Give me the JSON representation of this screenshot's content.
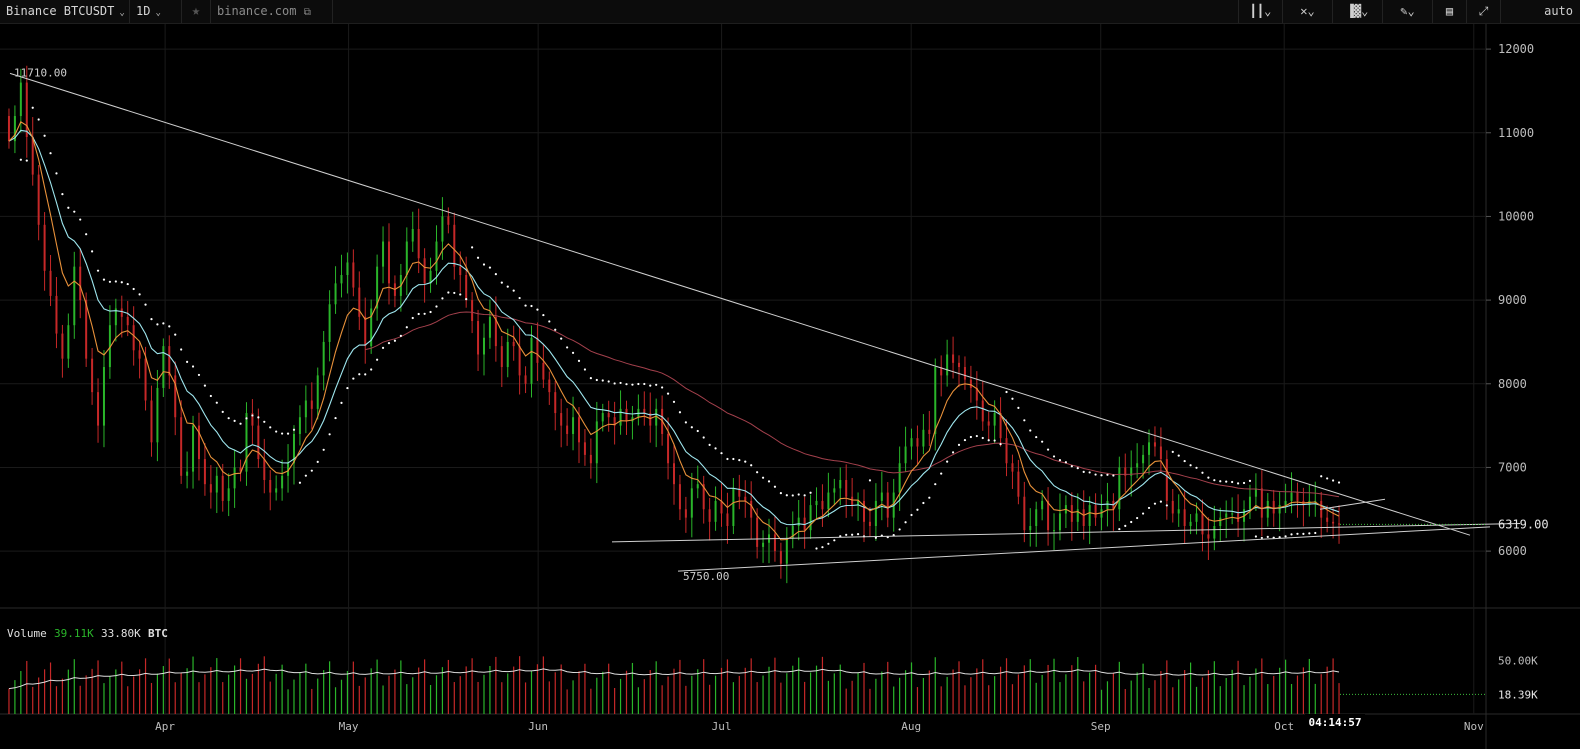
{
  "toolbar": {
    "symbol": "Binance BTCUSDT",
    "interval": "1D",
    "star_icon": "star-icon",
    "source": "binance.com",
    "right_icons": [
      "bars-style-icon",
      "cross-icon",
      "chart-type-icon",
      "pencil-icon",
      "indicator-icon",
      "fullscreen-icon"
    ],
    "scale": "auto"
  },
  "colors": {
    "background": "#000000",
    "grid": "#1a1a1a",
    "candle_up": "#2ab52a",
    "candle_down": "#c62828",
    "ema_orange": "#e8913a",
    "ema_cyan": "#9ee6ee",
    "ma_long": "#a3404c",
    "trendline": "#d0d0d0",
    "parabolic_sar": "#ffffff",
    "volume_line": "#e0e0e0"
  },
  "annotations": {
    "high_label": "11710.00",
    "low_label": "5750.00"
  },
  "chart_data": {
    "type": "candlestick",
    "x_labels": [
      "Apr",
      "May",
      "Jun",
      "Jul",
      "Aug",
      "Sep",
      "Oct",
      "Nov"
    ],
    "price_ticks": [
      12000,
      11000,
      10000,
      9000,
      8000,
      7000,
      6000
    ],
    "price_range": [
      5320,
      12300
    ],
    "last_price": "6319.00",
    "date_range": [
      "2018-03-05",
      "2018-11-03"
    ],
    "candles_close": [
      10900,
      11200,
      11600,
      10950,
      10500,
      9900,
      9350,
      9050,
      8600,
      8300,
      8700,
      9400,
      9000,
      8300,
      7900,
      7500,
      8200,
      8700,
      8900,
      8800,
      8700,
      8400,
      8300,
      7800,
      7300,
      7950,
      8450,
      8100,
      7600,
      6900,
      6950,
      7500,
      7100,
      6800,
      6700,
      6900,
      6600,
      6750,
      7000,
      6950,
      7650,
      7500,
      7100,
      6850,
      6700,
      6750,
      6900,
      7050,
      7400,
      7600,
      7800,
      7700,
      8100,
      8500,
      8950,
      9200,
      9300,
      9450,
      9150,
      8800,
      8450,
      8900,
      9400,
      9700,
      9200,
      9050,
      9300,
      9700,
      9850,
      9500,
      9200,
      9350,
      9700,
      10000,
      9900,
      9400,
      9300,
      9000,
      8750,
      8350,
      8550,
      8800,
      8450,
      8200,
      8500,
      8450,
      8100,
      8000,
      8550,
      8250,
      8050,
      7900,
      7650,
      7500,
      7400,
      7600,
      7300,
      7150,
      7050,
      7550,
      7650,
      7600,
      7500,
      7700,
      7550,
      7600,
      7700,
      7650,
      7500,
      7700,
      7400,
      7050,
      6800,
      6500,
      6400,
      6750,
      6800,
      6500,
      6350,
      6600,
      6450,
      6300,
      6750,
      6650,
      6600,
      6400,
      6050,
      6100,
      6200,
      6000,
      5850,
      6150,
      6300,
      6400,
      6250,
      6550,
      6600,
      6500,
      6700,
      6750,
      6850,
      6650,
      6550,
      6600,
      6350,
      6300,
      6600,
      6700,
      6400,
      6700,
      7050,
      7250,
      7350,
      7250,
      7450,
      7400,
      8200,
      8100,
      8350,
      8250,
      8200,
      8050,
      7950,
      7800,
      7550,
      7500,
      7650,
      7350,
      7050,
      6950,
      6650,
      6250,
      6300,
      6500,
      6600,
      6250,
      6250,
      6450,
      6550,
      6350,
      6500,
      6300,
      6550,
      6400,
      6500,
      6600,
      6500,
      7000,
      6900,
      7000,
      7050,
      7150,
      7300,
      7250,
      7100,
      6600,
      6450,
      6500,
      6300,
      6350,
      6450,
      6200,
      6150,
      6300,
      6400,
      6450,
      6450,
      6350,
      6500,
      6650,
      6750,
      6400,
      6600,
      6450,
      6550,
      6600,
      6700,
      6600,
      6550,
      6600,
      6600,
      6400,
      6350,
      6330,
      6319
    ],
    "volume_labels": {
      "title": "Volume",
      "value_green": "39.11K",
      "value_white": "33.80K",
      "unit": "BTC"
    },
    "volume_ticks": [
      "50.00K",
      "18.39K"
    ],
    "volume_range": [
      0,
      88000
    ],
    "time_label": "04:14:57"
  }
}
